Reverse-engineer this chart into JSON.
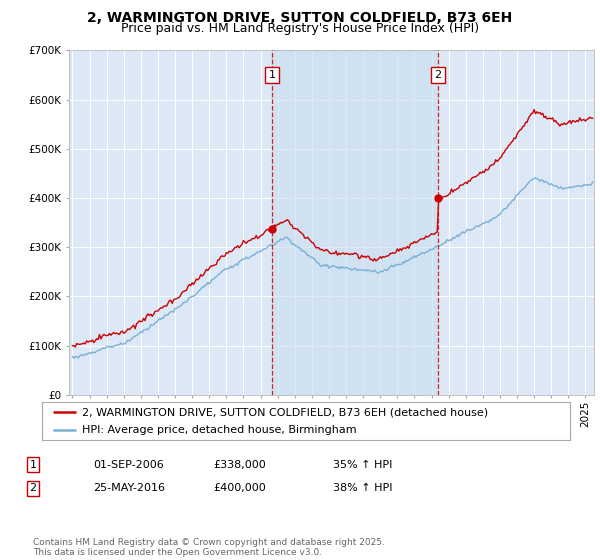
{
  "title": "2, WARMINGTON DRIVE, SUTTON COLDFIELD, B73 6EH",
  "subtitle": "Price paid vs. HM Land Registry's House Price Index (HPI)",
  "ylim": [
    0,
    700000
  ],
  "yticks": [
    0,
    100000,
    200000,
    300000,
    400000,
    500000,
    600000,
    700000
  ],
  "ytick_labels": [
    "£0",
    "£100K",
    "£200K",
    "£300K",
    "£400K",
    "£500K",
    "£600K",
    "£700K"
  ],
  "xlim_start": 1994.8,
  "xlim_end": 2025.5,
  "background_color": "#ffffff",
  "plot_bg_color": "#dce8f5",
  "shade_color": "#c8ddf0",
  "grid_color": "#ffffff",
  "red_line_color": "#cc0000",
  "blue_line_color": "#7ab0d4",
  "marker1_date": 2006.67,
  "marker1_price": 338000,
  "marker1_label": "1",
  "marker2_date": 2016.38,
  "marker2_price": 400000,
  "marker2_label": "2",
  "sale1_date_str": "01-SEP-2006",
  "sale1_price_str": "£338,000",
  "sale1_hpi_str": "35% ↑ HPI",
  "sale2_date_str": "25-MAY-2016",
  "sale2_price_str": "£400,000",
  "sale2_hpi_str": "38% ↑ HPI",
  "legend_line1": "2, WARMINGTON DRIVE, SUTTON COLDFIELD, B73 6EH (detached house)",
  "legend_line2": "HPI: Average price, detached house, Birmingham",
  "footer": "Contains HM Land Registry data © Crown copyright and database right 2025.\nThis data is licensed under the Open Government Licence v3.0.",
  "title_fontsize": 10,
  "subtitle_fontsize": 9,
  "tick_fontsize": 7.5,
  "legend_fontsize": 8,
  "footer_fontsize": 6.5
}
